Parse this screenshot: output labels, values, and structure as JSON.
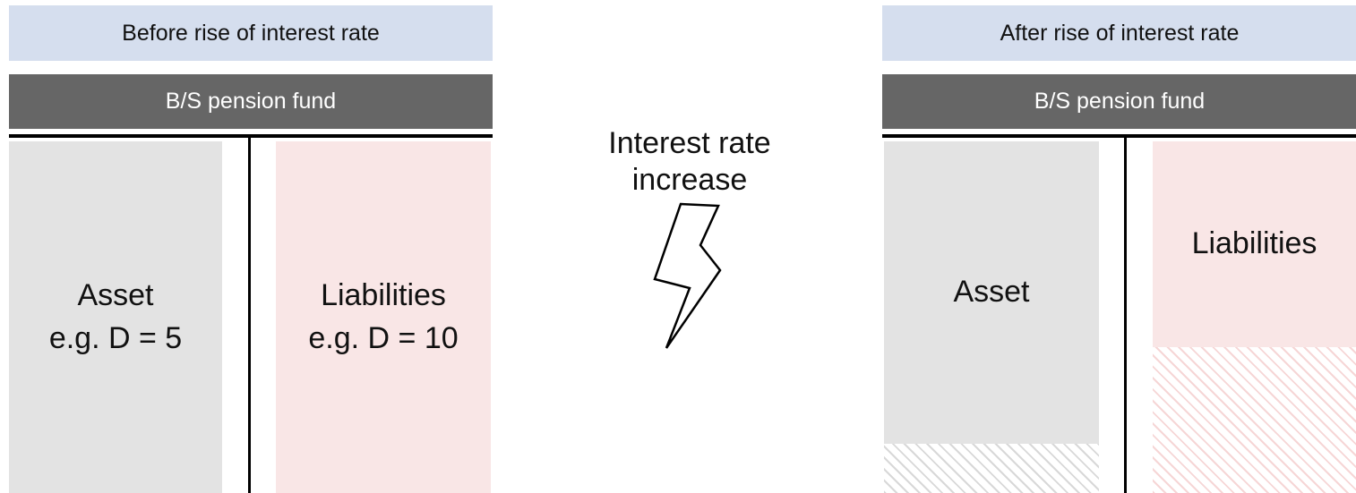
{
  "left": {
    "header": "Before rise of interest rate",
    "bs_title": "B/S pension fund",
    "asset": {
      "label": "Asset",
      "duration": "e.g. D = 5"
    },
    "liabilities": {
      "label": "Liabilities",
      "duration": "e.g. D = 10"
    }
  },
  "right": {
    "header": "After rise of interest rate",
    "bs_title": "B/S pension fund",
    "asset": {
      "label": "Asset"
    },
    "liabilities": {
      "label": "Liabilities"
    }
  },
  "center": {
    "line1": "Interest rate",
    "line2": "increase",
    "icon": "lightning-bolt-icon"
  },
  "colors": {
    "header_light": "#d5deee",
    "header_dark": "#666666",
    "asset": "#e3e3e3",
    "liabilities": "#f9e6e6"
  }
}
